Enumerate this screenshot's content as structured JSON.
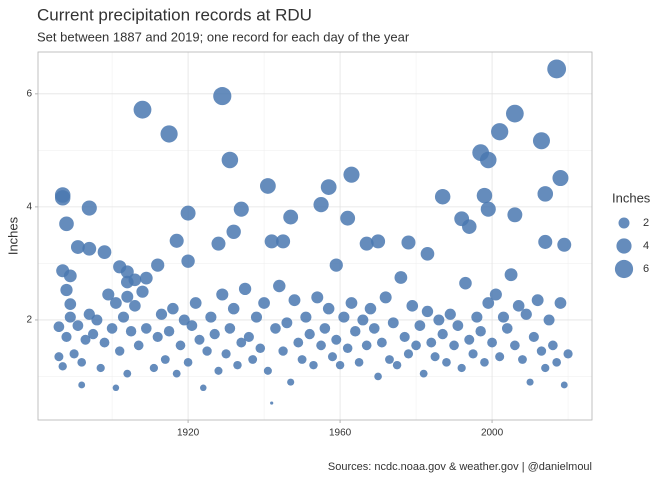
{
  "chart_data": {
    "type": "scatter",
    "title": "Current precipitation records at RDU",
    "subtitle": "Set between 1887 and 2019; one record for each day of the year",
    "y_label": "Inches",
    "caption": "Sources: ncdc.noaa.gov & weather.gov | @danielmoul",
    "color": "#4a78b0",
    "grid": true,
    "xlim": [
      1880.5,
      2026.3
    ],
    "xticks": [
      1920,
      1960,
      2000
    ],
    "ylim": [
      0.23,
      6.74
    ],
    "yticks": [
      2,
      4,
      6
    ],
    "size_legend": {
      "title": "Inches",
      "values": [
        2,
        4,
        6
      ]
    },
    "x": [
      1887,
      1887,
      1888,
      1888,
      1887,
      1889,
      1889,
      1891,
      1894,
      1894,
      1898,
      1902,
      1904,
      1904,
      1904,
      1906,
      1908,
      1909,
      1912,
      1915,
      1917,
      1920,
      1920,
      1929,
      1931,
      1932,
      1934,
      1928,
      1941,
      1942,
      1945,
      1947,
      1955,
      1957,
      1959,
      1962,
      1963,
      1967,
      1970,
      1978,
      1983,
      1987,
      1992,
      1994,
      1997,
      1998,
      1999,
      1999,
      2002,
      2006,
      2006,
      2013,
      2014,
      2014,
      2017,
      2018,
      2019,
      1886,
      1886,
      1887,
      1888,
      1889,
      1890,
      1891,
      1892,
      1892,
      1893,
      1894,
      1895,
      1896,
      1897,
      1898,
      1899,
      1900,
      1901,
      1901,
      1902,
      1903,
      1904,
      1905,
      1906,
      1907,
      1908,
      1909,
      1911,
      1912,
      1913,
      1914,
      1915,
      1916,
      1917,
      1918,
      1919,
      1920,
      1921,
      1922,
      1923,
      1924,
      1925,
      1926,
      1927,
      1928,
      1929,
      1930,
      1931,
      1932,
      1933,
      1934,
      1935,
      1936,
      1937,
      1938,
      1939,
      1940,
      1941,
      1942,
      1943,
      1944,
      1945,
      1946,
      1947,
      1948,
      1949,
      1950,
      1951,
      1952,
      1953,
      1954,
      1955,
      1956,
      1957,
      1958,
      1959,
      1960,
      1961,
      1962,
      1963,
      1964,
      1965,
      1966,
      1967,
      1968,
      1969,
      1970,
      1971,
      1972,
      1973,
      1974,
      1975,
      1976,
      1977,
      1978,
      1979,
      1980,
      1981,
      1982,
      1983,
      1984,
      1985,
      1986,
      1987,
      1988,
      1989,
      1990,
      1991,
      1992,
      1993,
      1994,
      1995,
      1996,
      1997,
      1998,
      1999,
      2000,
      2001,
      2002,
      2003,
      2004,
      2005,
      2006,
      2007,
      2008,
      2009,
      2010,
      2011,
      2012,
      2013,
      2014,
      2015,
      2016,
      2017,
      2018,
      2019,
      2020
    ],
    "values": [
      4.21,
      4.16,
      3.7,
      2.53,
      2.87,
      2.78,
      2.28,
      3.29,
      3.98,
      3.26,
      3.2,
      2.94,
      2.85,
      2.67,
      2.41,
      2.71,
      5.72,
      2.74,
      2.97,
      5.29,
      3.4,
      3.89,
      3.04,
      5.96,
      4.83,
      3.56,
      3.96,
      3.35,
      4.37,
      3.39,
      3.39,
      3.82,
      4.04,
      4.35,
      2.97,
      3.8,
      4.57,
      3.35,
      3.39,
      3.37,
      3.17,
      4.18,
      3.79,
      3.65,
      4.96,
      4.2,
      4.83,
      3.96,
      5.33,
      5.65,
      3.86,
      5.17,
      4.23,
      3.38,
      6.44,
      4.51,
      3.33,
      1.35,
      1.88,
      1.18,
      1.7,
      2.05,
      1.4,
      1.9,
      0.85,
      1.25,
      1.65,
      2.1,
      1.75,
      2.0,
      1.15,
      1.6,
      2.45,
      1.85,
      0.8,
      2.3,
      1.45,
      2.05,
      1.05,
      1.8,
      2.25,
      1.55,
      2.5,
      1.85,
      1.15,
      1.7,
      2.1,
      1.3,
      1.8,
      2.2,
      1.05,
      1.55,
      2.0,
      1.25,
      1.9,
      2.3,
      1.65,
      0.8,
      1.45,
      2.05,
      1.75,
      1.1,
      2.45,
      1.4,
      1.85,
      2.2,
      1.2,
      1.6,
      2.55,
      1.7,
      1.3,
      2.05,
      1.5,
      2.3,
      1.1,
      0.53,
      1.85,
      2.6,
      1.45,
      1.95,
      0.9,
      2.35,
      1.6,
      1.3,
      2.05,
      1.75,
      1.2,
      2.4,
      1.55,
      1.85,
      2.2,
      1.35,
      1.65,
      1.2,
      2.05,
      1.5,
      2.3,
      1.8,
      1.25,
      2.0,
      1.55,
      2.2,
      1.85,
      1.0,
      1.6,
      2.4,
      1.3,
      1.95,
      1.2,
      2.75,
      1.7,
      1.4,
      2.25,
      1.55,
      1.9,
      1.05,
      2.15,
      1.6,
      1.35,
      2.0,
      1.75,
      1.25,
      2.1,
      1.55,
      1.9,
      1.15,
      2.65,
      1.65,
      1.4,
      2.05,
      1.8,
      1.25,
      2.3,
      1.6,
      2.45,
      1.35,
      2.05,
      1.85,
      2.8,
      1.55,
      2.25,
      1.3,
      2.1,
      0.9,
      1.7,
      2.35,
      1.45,
      1.15,
      2.0,
      1.55,
      1.25,
      2.3,
      0.85,
      1.4
    ]
  }
}
